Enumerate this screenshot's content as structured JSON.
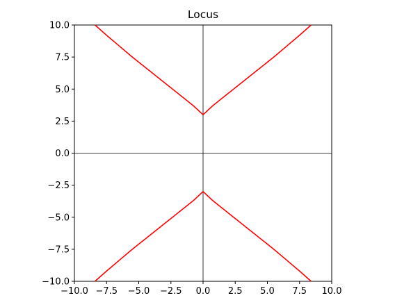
{
  "chart_data": {
    "type": "line",
    "title": "Locus",
    "xlabel": "",
    "ylabel": "",
    "xlim": [
      -10,
      10
    ],
    "ylim": [
      -10,
      10
    ],
    "grid": false,
    "legend": "none",
    "xticks": [
      "−10.0",
      "−7.5",
      "−5.0",
      "−2.5",
      "0.0",
      "2.5",
      "5.0",
      "7.5",
      "10.0"
    ],
    "yticks": [
      "10.0",
      "7.5",
      "5.0",
      "2.5",
      "0.0",
      "−2.5",
      "−5.0",
      "−7.5",
      "−10.0"
    ],
    "xtick_values": [
      -10,
      -7.5,
      -5,
      -2.5,
      0,
      2.5,
      5,
      7.5,
      10
    ],
    "ytick_values": [
      10,
      7.5,
      5,
      2.5,
      0,
      -2.5,
      -5,
      -7.5,
      -10
    ],
    "series_color": "#ff0000",
    "axis_line_color": "#000000",
    "series": [
      {
        "x": [
          -8.4,
          -7.5,
          -6.5,
          -5.5,
          -4.5,
          -3.5,
          -2.5,
          -1.5,
          -0.75,
          0,
          0.75,
          1.5,
          2.5,
          3.5,
          4.5,
          5.5,
          6.5,
          7.5,
          8.4
        ],
        "y": [
          10.0,
          9.2,
          8.35,
          7.5,
          6.7,
          5.9,
          5.1,
          4.3,
          3.7,
          3.0,
          3.7,
          4.3,
          5.1,
          5.9,
          6.7,
          7.5,
          8.35,
          9.2,
          10.0
        ]
      },
      {
        "x": [
          -8.4,
          -7.5,
          -6.5,
          -5.5,
          -4.5,
          -3.5,
          -2.5,
          -1.5,
          -0.75,
          0,
          0.75,
          1.5,
          2.5,
          3.5,
          4.5,
          5.5,
          6.5,
          7.5,
          8.4
        ],
        "y": [
          -10.0,
          -9.2,
          -8.35,
          -7.5,
          -6.7,
          -5.9,
          -5.1,
          -4.3,
          -3.7,
          -3.0,
          -3.7,
          -4.3,
          -5.1,
          -5.9,
          -6.7,
          -7.5,
          -8.35,
          -9.2,
          -10.0
        ]
      }
    ]
  }
}
